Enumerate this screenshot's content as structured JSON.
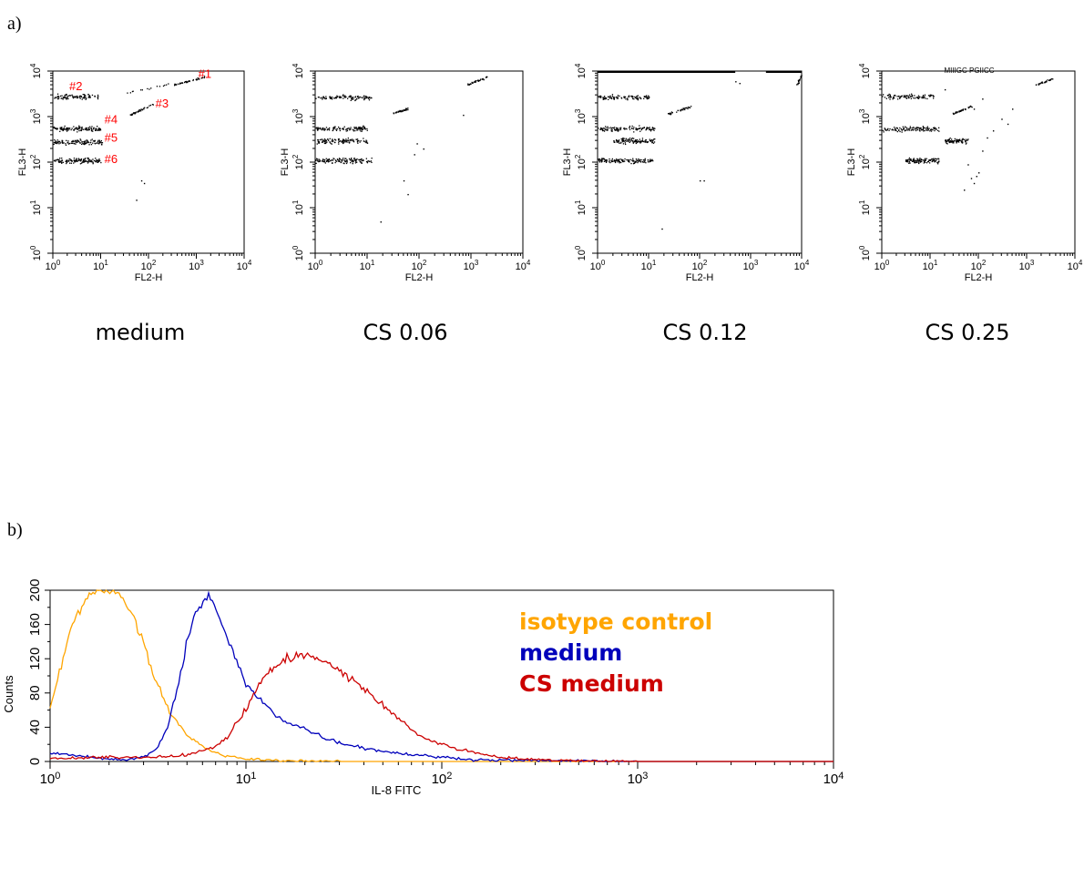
{
  "panel_labels": [
    "a)",
    "b)"
  ],
  "chart_data": [
    {
      "type": "scatter",
      "condition": "medium",
      "xlabel": "FL2-H",
      "ylabel": "FL3-H",
      "xscale": "log",
      "yscale": "log",
      "xlim": [
        1,
        10000
      ],
      "ylim": [
        1,
        10000
      ],
      "ticks": [
        "10^0",
        "10^1",
        "10^2",
        "10^3",
        "10^4"
      ],
      "gate_labels": [
        {
          "text": "#1",
          "x": 1100,
          "y": 7000
        },
        {
          "text": "#2",
          "x": 2.2,
          "y": 3800
        },
        {
          "text": "#3",
          "x": 140,
          "y": 1600
        },
        {
          "text": "#4",
          "x": 12,
          "y": 700
        },
        {
          "text": "#5",
          "x": 12,
          "y": 280
        },
        {
          "text": "#6",
          "x": 12,
          "y": 95
        }
      ],
      "clusters": [
        {
          "x": [
            1,
            9
          ],
          "y": 2800,
          "n": 95
        },
        {
          "x": [
            1,
            10
          ],
          "y": 550,
          "n": 120
        },
        {
          "x": [
            1,
            11
          ],
          "y": 280,
          "n": 120
        },
        {
          "x": [
            1,
            10
          ],
          "y": 110,
          "n": 130
        },
        {
          "line": true,
          "x": [
            40,
            120
          ],
          "y": [
            1100,
            1900
          ],
          "n": 40
        },
        {
          "line": true,
          "x": [
            300,
            1500
          ],
          "y": [
            5000,
            7500
          ],
          "n": 40
        },
        {
          "line": true,
          "x": [
            20,
            300
          ],
          "y": [
            3000,
            5500
          ],
          "n": 15
        }
      ],
      "stray": [
        [
          70,
          40
        ],
        [
          55,
          15
        ],
        [
          80,
          35
        ]
      ]
    },
    {
      "type": "scatter",
      "condition": "CS 0.06",
      "xlabel": "FL2-H",
      "ylabel": "FL3-H",
      "xscale": "log",
      "yscale": "log",
      "xlim": [
        1,
        10000
      ],
      "ylim": [
        1,
        10000
      ],
      "ticks": [
        "10^0",
        "10^1",
        "10^2",
        "10^3",
        "10^4"
      ],
      "gate_labels": [],
      "clusters": [
        {
          "x": [
            1,
            12
          ],
          "y": 2700,
          "n": 100
        },
        {
          "x": [
            1,
            10
          ],
          "y": 550,
          "n": 110
        },
        {
          "x": [
            1,
            10
          ],
          "y": 300,
          "n": 110
        },
        {
          "x": [
            1,
            12
          ],
          "y": 110,
          "n": 130
        },
        {
          "line": true,
          "x": [
            30,
            60
          ],
          "y": [
            1200,
            1500
          ],
          "n": 35
        },
        {
          "line": true,
          "x": [
            800,
            2000
          ],
          "y": [
            5000,
            7500
          ],
          "n": 35
        }
      ],
      "stray": [
        [
          120,
          200
        ],
        [
          80,
          150
        ],
        [
          50,
          40
        ],
        [
          60,
          20
        ],
        [
          18,
          5
        ],
        [
          700,
          1100
        ],
        [
          90,
          260
        ]
      ]
    },
    {
      "type": "scatter",
      "condition": "CS 0.12",
      "xlabel": "FL2-H",
      "ylabel": "FL3-H",
      "xscale": "log",
      "yscale": "log",
      "xlim": [
        1,
        10000
      ],
      "ylim": [
        1,
        10000
      ],
      "ticks": [
        "10^0",
        "10^1",
        "10^2",
        "10^3",
        "10^4"
      ],
      "gate_labels": [],
      "clusters": [
        {
          "x": [
            1,
            10
          ],
          "y": 2700,
          "n": 95
        },
        {
          "x": [
            1,
            13
          ],
          "y": 550,
          "n": 110
        },
        {
          "x": [
            2,
            13
          ],
          "y": 300,
          "n": 110
        },
        {
          "x": [
            1,
            12
          ],
          "y": 110,
          "n": 130
        },
        {
          "line": true,
          "x": [
            20,
            70
          ],
          "y": [
            1100,
            1700
          ],
          "n": 35
        },
        {
          "line": true,
          "x": [
            8000,
            10000
          ],
          "y": [
            5000,
            9000
          ],
          "n": 20
        }
      ],
      "stray": [
        [
          100,
          40
        ],
        [
          120,
          40
        ],
        [
          18,
          3.5
        ],
        [
          500,
          6000
        ],
        [
          600,
          5500
        ]
      ],
      "top_lines": [
        [
          1,
          500
        ],
        [
          2000,
          10000
        ]
      ]
    },
    {
      "type": "scatter",
      "condition": "CS 0.25",
      "xlabel": "FL2-H",
      "ylabel": "FL3-H",
      "xscale": "log",
      "yscale": "log",
      "xlim": [
        1,
        10000
      ],
      "ylim": [
        1,
        10000
      ],
      "ticks": [
        "10^0",
        "10^1",
        "10^2",
        "10^3",
        "10^4"
      ],
      "gate_labels": [],
      "clusters": [
        {
          "x": [
            1,
            12
          ],
          "y": 2800,
          "n": 95
        },
        {
          "x": [
            1,
            15
          ],
          "y": 550,
          "n": 110
        },
        {
          "x": [
            20,
            60
          ],
          "y": 300,
          "n": 80
        },
        {
          "x": [
            3,
            15
          ],
          "y": 110,
          "n": 110
        },
        {
          "line": true,
          "x": [
            30,
            70
          ],
          "y": [
            1200,
            1700
          ],
          "n": 35
        },
        {
          "line": true,
          "x": [
            1500,
            3500
          ],
          "y": [
            5000,
            7000
          ],
          "n": 35
        }
      ],
      "stray": [
        [
          60,
          90
        ],
        [
          70,
          45
        ],
        [
          80,
          35
        ],
        [
          90,
          50
        ],
        [
          100,
          60
        ],
        [
          50,
          25
        ],
        [
          120,
          180
        ],
        [
          150,
          350
        ],
        [
          200,
          500
        ],
        [
          300,
          900
        ],
        [
          400,
          700
        ],
        [
          80,
          1500
        ],
        [
          120,
          2500
        ],
        [
          500,
          1500
        ],
        [
          20,
          4000
        ]
      ],
      "top_text": "MIIIGC PGIICC"
    },
    {
      "type": "line",
      "xlabel": "IL-8 FITC",
      "ylabel": "Counts",
      "xscale": "log",
      "xlim": [
        1,
        10000
      ],
      "ylim": [
        0,
        200
      ],
      "xticks": [
        "10^0",
        "10^1",
        "10^2",
        "10^3",
        "10^4"
      ],
      "yticks": [
        0,
        40,
        80,
        120,
        160,
        200
      ],
      "legend_placement": "top-right",
      "series": [
        {
          "name": "isotype control",
          "color": "#ffa500",
          "x": [
            1,
            1.1,
            1.3,
            1.5,
            1.7,
            2,
            2.3,
            2.6,
            3,
            3.4,
            4,
            5,
            6,
            7,
            8,
            10,
            15,
            30,
            100,
            1000,
            10000
          ],
          "y": [
            60,
            100,
            160,
            190,
            200,
            200,
            195,
            175,
            140,
            100,
            60,
            30,
            18,
            10,
            6,
            3,
            1,
            0,
            0,
            0,
            0
          ]
        },
        {
          "name": "medium",
          "color": "#0000bb",
          "x": [
            1,
            1.5,
            2,
            2.5,
            3,
            3.5,
            4,
            4.5,
            5,
            5.5,
            6,
            6.5,
            7,
            7.5,
            8,
            9,
            10,
            12,
            15,
            20,
            25,
            30,
            40,
            50,
            70,
            100,
            150,
            300,
            1000,
            10000
          ],
          "y": [
            10,
            6,
            3,
            2,
            5,
            15,
            40,
            90,
            140,
            170,
            185,
            195,
            180,
            160,
            145,
            115,
            90,
            70,
            50,
            38,
            28,
            22,
            16,
            12,
            8,
            5,
            2,
            1,
            0,
            0
          ]
        },
        {
          "name": "CS medium",
          "color": "#cc0000",
          "x": [
            1,
            2,
            3,
            4,
            5,
            6,
            7,
            8,
            9,
            10,
            11,
            12,
            14,
            16,
            18,
            20,
            22,
            25,
            28,
            32,
            36,
            40,
            45,
            50,
            60,
            70,
            80,
            100,
            120,
            150,
            200,
            300,
            500,
            1000,
            10000
          ],
          "y": [
            3,
            5,
            5,
            6,
            8,
            12,
            18,
            28,
            45,
            60,
            80,
            95,
            110,
            118,
            125,
            125,
            120,
            118,
            110,
            100,
            95,
            85,
            75,
            65,
            50,
            38,
            28,
            20,
            15,
            10,
            5,
            2,
            1,
            0,
            0
          ]
        }
      ]
    }
  ]
}
